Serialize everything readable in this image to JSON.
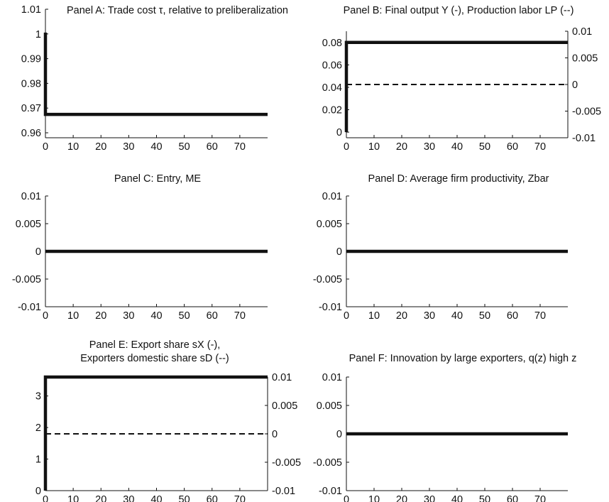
{
  "chart_data": [
    {
      "id": "A",
      "type": "line",
      "title": [
        "Panel A: Trade cost τ, relative to preliberalization"
      ],
      "xlim": [
        0,
        80
      ],
      "x_ticks": [
        0,
        10,
        20,
        30,
        40,
        50,
        60,
        70
      ],
      "ylim_left": [
        0.955,
        1.01
      ],
      "yticks_left": [
        "1.01",
        "1",
        "0.99",
        "0.98",
        "0.97",
        "0.96"
      ],
      "series": [
        {
          "axis": "left",
          "style": "solid",
          "x": [
            0,
            0,
            80
          ],
          "y": [
            1.0,
            0.965,
            0.965
          ]
        }
      ]
    },
    {
      "id": "B",
      "type": "line",
      "title": [
        "Panel B: Final output Y (-), Production labor LP (--)"
      ],
      "xlim": [
        0,
        80
      ],
      "x_ticks": [
        0,
        10,
        20,
        30,
        40,
        50,
        60,
        70
      ],
      "ylim_left": [
        -0.005,
        0.09
      ],
      "yticks_left": [
        "0.08",
        "0.06",
        "0.04",
        "0.02",
        "0"
      ],
      "ylim_right": [
        -0.01,
        0.01
      ],
      "yticks_right": [
        "0.01",
        "0.005",
        "0",
        "-0.005",
        "-0.01"
      ],
      "series": [
        {
          "axis": "left",
          "style": "solid",
          "x": [
            0,
            0,
            80
          ],
          "y": [
            0,
            0.08,
            0.08
          ]
        },
        {
          "axis": "right",
          "style": "dashed",
          "x": [
            0,
            80
          ],
          "y": [
            0,
            0
          ]
        }
      ]
    },
    {
      "id": "C",
      "type": "line",
      "title": [
        "Panel C: Entry, ME"
      ],
      "xlim": [
        0,
        80
      ],
      "x_ticks": [
        0,
        10,
        20,
        30,
        40,
        50,
        60,
        70
      ],
      "ylim_left": [
        -0.01,
        0.01
      ],
      "yticks_left": [
        "0.01",
        "0.005",
        "0",
        "-0.005",
        "-0.01"
      ],
      "series": [
        {
          "axis": "left",
          "style": "solid",
          "x": [
            0,
            80
          ],
          "y": [
            0,
            0
          ]
        }
      ]
    },
    {
      "id": "D",
      "type": "line",
      "title": [
        "Panel D: Average firm productivity, Zbar"
      ],
      "xlim": [
        0,
        80
      ],
      "x_ticks": [
        0,
        10,
        20,
        30,
        40,
        50,
        60,
        70
      ],
      "ylim_left": [
        -0.01,
        0.01
      ],
      "yticks_left": [
        "0.01",
        "0.005",
        "0",
        "-0.005",
        "-0.01"
      ],
      "series": [
        {
          "axis": "left",
          "style": "solid",
          "x": [
            0,
            80
          ],
          "y": [
            0,
            0
          ]
        }
      ]
    },
    {
      "id": "E",
      "type": "line",
      "title": [
        "Panel E: Export share sX (-),",
        "Exporters domestic share sD (--)"
      ],
      "xlim": [
        0,
        80
      ],
      "x_ticks": [
        0,
        10,
        20,
        30,
        40,
        50,
        60,
        70
      ],
      "ylim_left": [
        0,
        3.6
      ],
      "yticks_left": [
        "3",
        "2",
        "1",
        "0"
      ],
      "ylim_right": [
        -0.01,
        0.01
      ],
      "yticks_right": [
        "0.01",
        "0.005",
        "0",
        "-0.005",
        "-0.01"
      ],
      "series": [
        {
          "axis": "left",
          "style": "solid",
          "x": [
            0,
            0,
            80
          ],
          "y": [
            0,
            3.6,
            3.6
          ]
        },
        {
          "axis": "right",
          "style": "dashed",
          "x": [
            0,
            80
          ],
          "y": [
            0,
            0
          ]
        }
      ]
    },
    {
      "id": "F",
      "type": "line",
      "title": [
        "Panel F: Innovation by large exporters, q(z) high z"
      ],
      "xlim": [
        0,
        80
      ],
      "x_ticks": [
        0,
        10,
        20,
        30,
        40,
        50,
        60,
        70
      ],
      "ylim_left": [
        -0.01,
        0.01
      ],
      "yticks_left": [
        "0.01",
        "0.005",
        "0",
        "-0.005",
        "-0.01"
      ],
      "series": [
        {
          "axis": "left",
          "style": "solid",
          "x": [
            0,
            80
          ],
          "y": [
            0,
            0
          ]
        }
      ]
    }
  ]
}
